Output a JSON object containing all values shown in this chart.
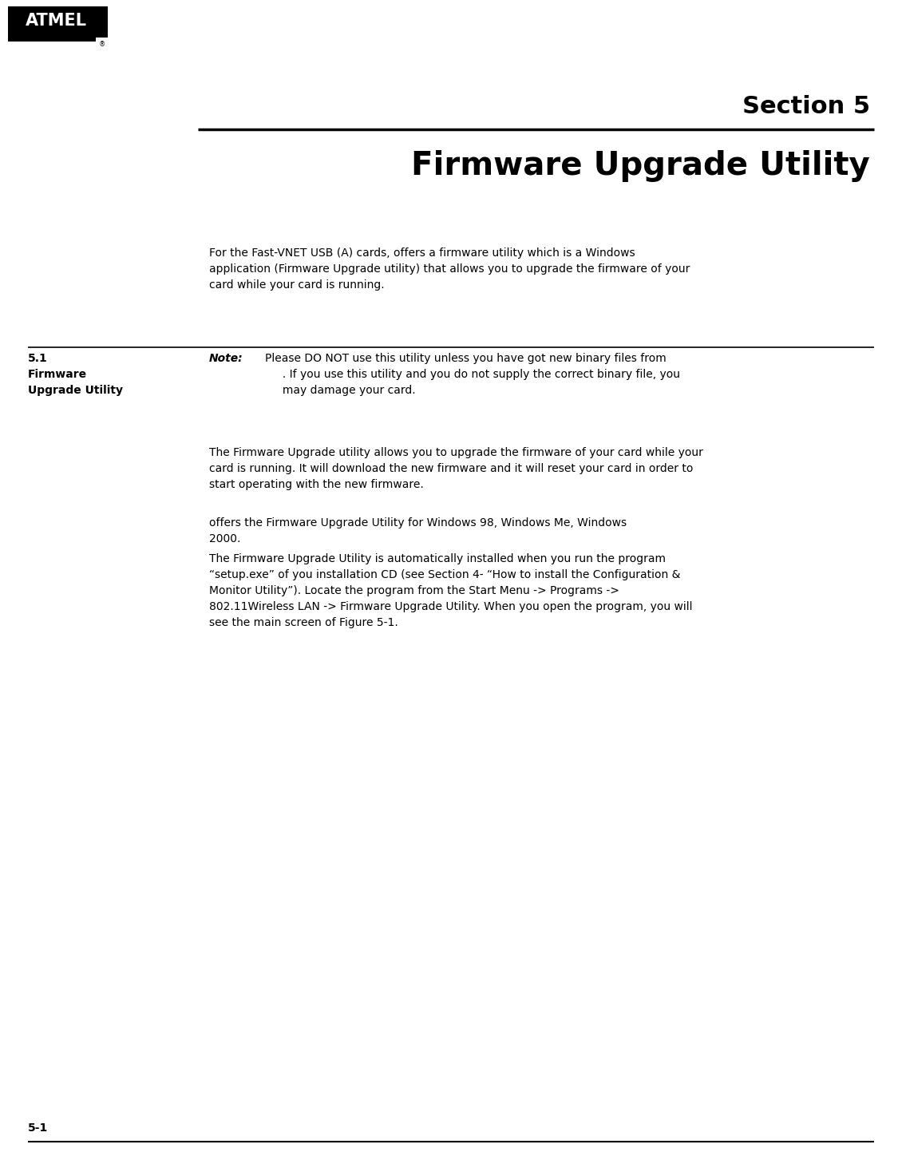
{
  "bg_color": "#ffffff",
  "page_width": 11.25,
  "page_height": 14.58,
  "section_label": "Section 5",
  "section_title": "Firmware Upgrade Utility",
  "intro_text": "For the Fast-VNET USB (A) cards, offers a firmware utility which is a Windows\napplication (Firmware Upgrade utility) that allows you to upgrade the firmware of your\ncard while your card is running.",
  "section_num": "5.1",
  "section_sub_bold": "Firmware\nUpgrade Utility",
  "note_label": "Note:",
  "note_line1": "Please DO NOT use this utility unless you have got new binary files from",
  "note_line2": "     . If you use this utility and you do not supply the correct binary file, you",
  "note_line3": "     may damage your card.",
  "body_text1": "The Firmware Upgrade utility allows you to upgrade the firmware of your card while your\ncard is running. It will download the new firmware and it will reset your card in order to\nstart operating with the new firmware.",
  "body_text2": "offers the Firmware Upgrade Utility for Windows 98, Windows Me, Windows\n2000.",
  "body_text3": "The Firmware Upgrade Utility is automatically installed when you run the program\n“setup.exe” of you installation CD (see Section 4- “How to install the Configuration &\nMonitor Utility”). Locate the program from the Start Menu -> Programs ->\n802.11Wireless LAN -> Firmware Upgrade Utility. When you open the program, you will\nsee the main screen of Figure 5-1.",
  "footer_text": "5-1"
}
